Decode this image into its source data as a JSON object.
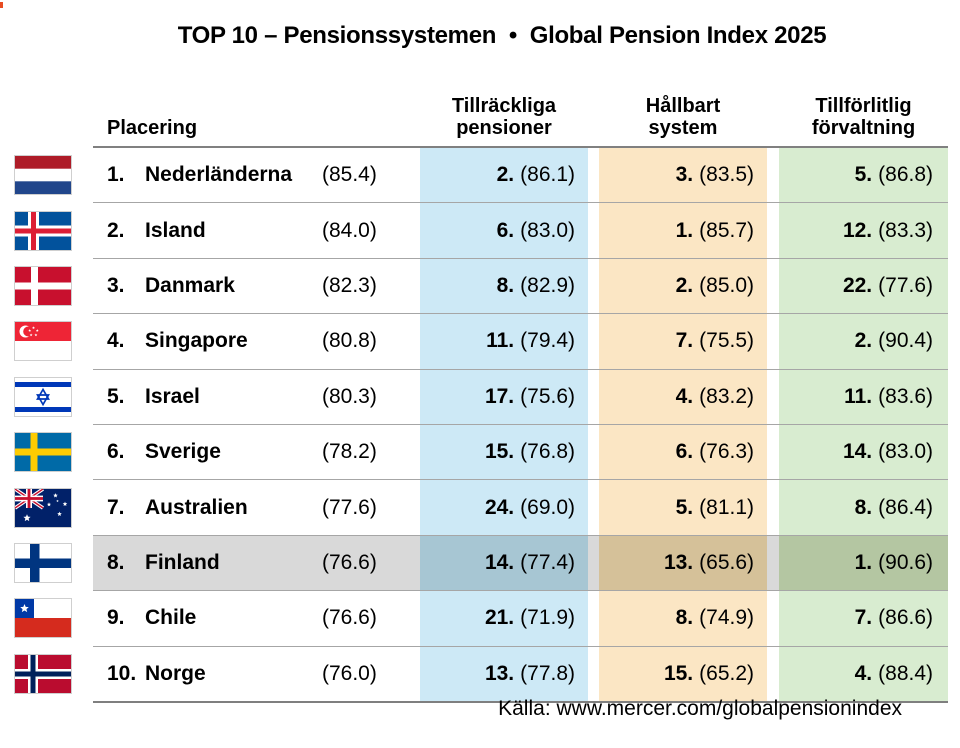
{
  "page": {
    "title": "TOP 10 – Pensionssystemen  •  Global Pension Index 2025",
    "source": "Källa: www.mercer.com/globalpensionindex"
  },
  "table": {
    "headers": {
      "placering": "Placering",
      "adequacy_line1": "Tillräckliga",
      "adequacy_line2": "pensioner",
      "sustainability_line1": "Hållbart",
      "sustainability_line2": "system",
      "integrity_line1": "Tillförlitlig",
      "integrity_line2": "förvaltning"
    },
    "rows": [
      {
        "flag": "netherlands",
        "rank": "1.",
        "country": "Nederländerna",
        "score": "(85.4)",
        "adequacy_rank": "2.",
        "adequacy_score": "(86.1)",
        "sustainability_rank": "3.",
        "sustainability_score": "(83.5)",
        "integrity_rank": "5.",
        "integrity_score": "(86.8)",
        "highlight": false
      },
      {
        "flag": "iceland",
        "rank": "2.",
        "country": "Island",
        "score": "(84.0)",
        "adequacy_rank": "6.",
        "adequacy_score": "(83.0)",
        "sustainability_rank": "1.",
        "sustainability_score": "(85.7)",
        "integrity_rank": "12.",
        "integrity_score": "(83.3)",
        "highlight": false
      },
      {
        "flag": "denmark",
        "rank": "3.",
        "country": "Danmark",
        "score": "(82.3)",
        "adequacy_rank": "8.",
        "adequacy_score": "(82.9)",
        "sustainability_rank": "2.",
        "sustainability_score": "(85.0)",
        "integrity_rank": "22.",
        "integrity_score": "(77.6)",
        "highlight": false
      },
      {
        "flag": "singapore",
        "rank": "4.",
        "country": "Singapore",
        "score": "(80.8)",
        "adequacy_rank": "11.",
        "adequacy_score": "(79.4)",
        "sustainability_rank": "7.",
        "sustainability_score": "(75.5)",
        "integrity_rank": "2.",
        "integrity_score": "(90.4)",
        "highlight": false
      },
      {
        "flag": "israel",
        "rank": "5.",
        "country": "Israel",
        "score": "(80.3)",
        "adequacy_rank": "17.",
        "adequacy_score": "(75.6)",
        "sustainability_rank": "4.",
        "sustainability_score": "(83.2)",
        "integrity_rank": "11.",
        "integrity_score": "(83.6)",
        "highlight": false
      },
      {
        "flag": "sweden",
        "rank": "6.",
        "country": "Sverige",
        "score": "(78.2)",
        "adequacy_rank": "15.",
        "adequacy_score": "(76.8)",
        "sustainability_rank": "6.",
        "sustainability_score": "(76.3)",
        "integrity_rank": "14.",
        "integrity_score": "(83.0)",
        "highlight": false
      },
      {
        "flag": "australia",
        "rank": "7.",
        "country": "Australien",
        "score": "(77.6)",
        "adequacy_rank": "24.",
        "adequacy_score": "(69.0)",
        "sustainability_rank": "5.",
        "sustainability_score": "(81.1)",
        "integrity_rank": "8.",
        "integrity_score": "(86.4)",
        "highlight": false
      },
      {
        "flag": "finland",
        "rank": "8.",
        "country": "Finland",
        "score": "(76.6)",
        "adequacy_rank": "14.",
        "adequacy_score": "(77.4)",
        "sustainability_rank": "13.",
        "sustainability_score": "(65.6)",
        "integrity_rank": "1.",
        "integrity_score": "(90.6)",
        "highlight": true
      },
      {
        "flag": "chile",
        "rank": "9.",
        "country": "Chile",
        "score": "(76.6)",
        "adequacy_rank": "21.",
        "adequacy_score": "(71.9)",
        "sustainability_rank": "8.",
        "sustainability_score": "(74.9)",
        "integrity_rank": "7.",
        "integrity_score": "(86.6)",
        "highlight": false
      },
      {
        "flag": "norway",
        "rank": "10.",
        "country": "Norge",
        "score": "(76.0)",
        "adequacy_rank": "13.",
        "adequacy_score": "(77.8)",
        "sustainability_rank": "15.",
        "sustainability_score": "(65.2)",
        "integrity_rank": "4.",
        "integrity_score": "(88.4)",
        "highlight": false
      }
    ]
  },
  "colors": {
    "adequacy_bg": "#cde9f6",
    "sustainability_bg": "#fbe6c4",
    "integrity_bg": "#d8ecd0",
    "highlight_placering_bg": "#d9d9d9",
    "highlight_adequacy_bg": "#a7c6d3",
    "highlight_sustainability_bg": "#d5c199",
    "highlight_integrity_bg": "#b4c6a2",
    "row_line": "#a6a6a6",
    "header_line": "#808080",
    "table_border": "#7f7f7f",
    "corner_mark": "#e84c22"
  }
}
